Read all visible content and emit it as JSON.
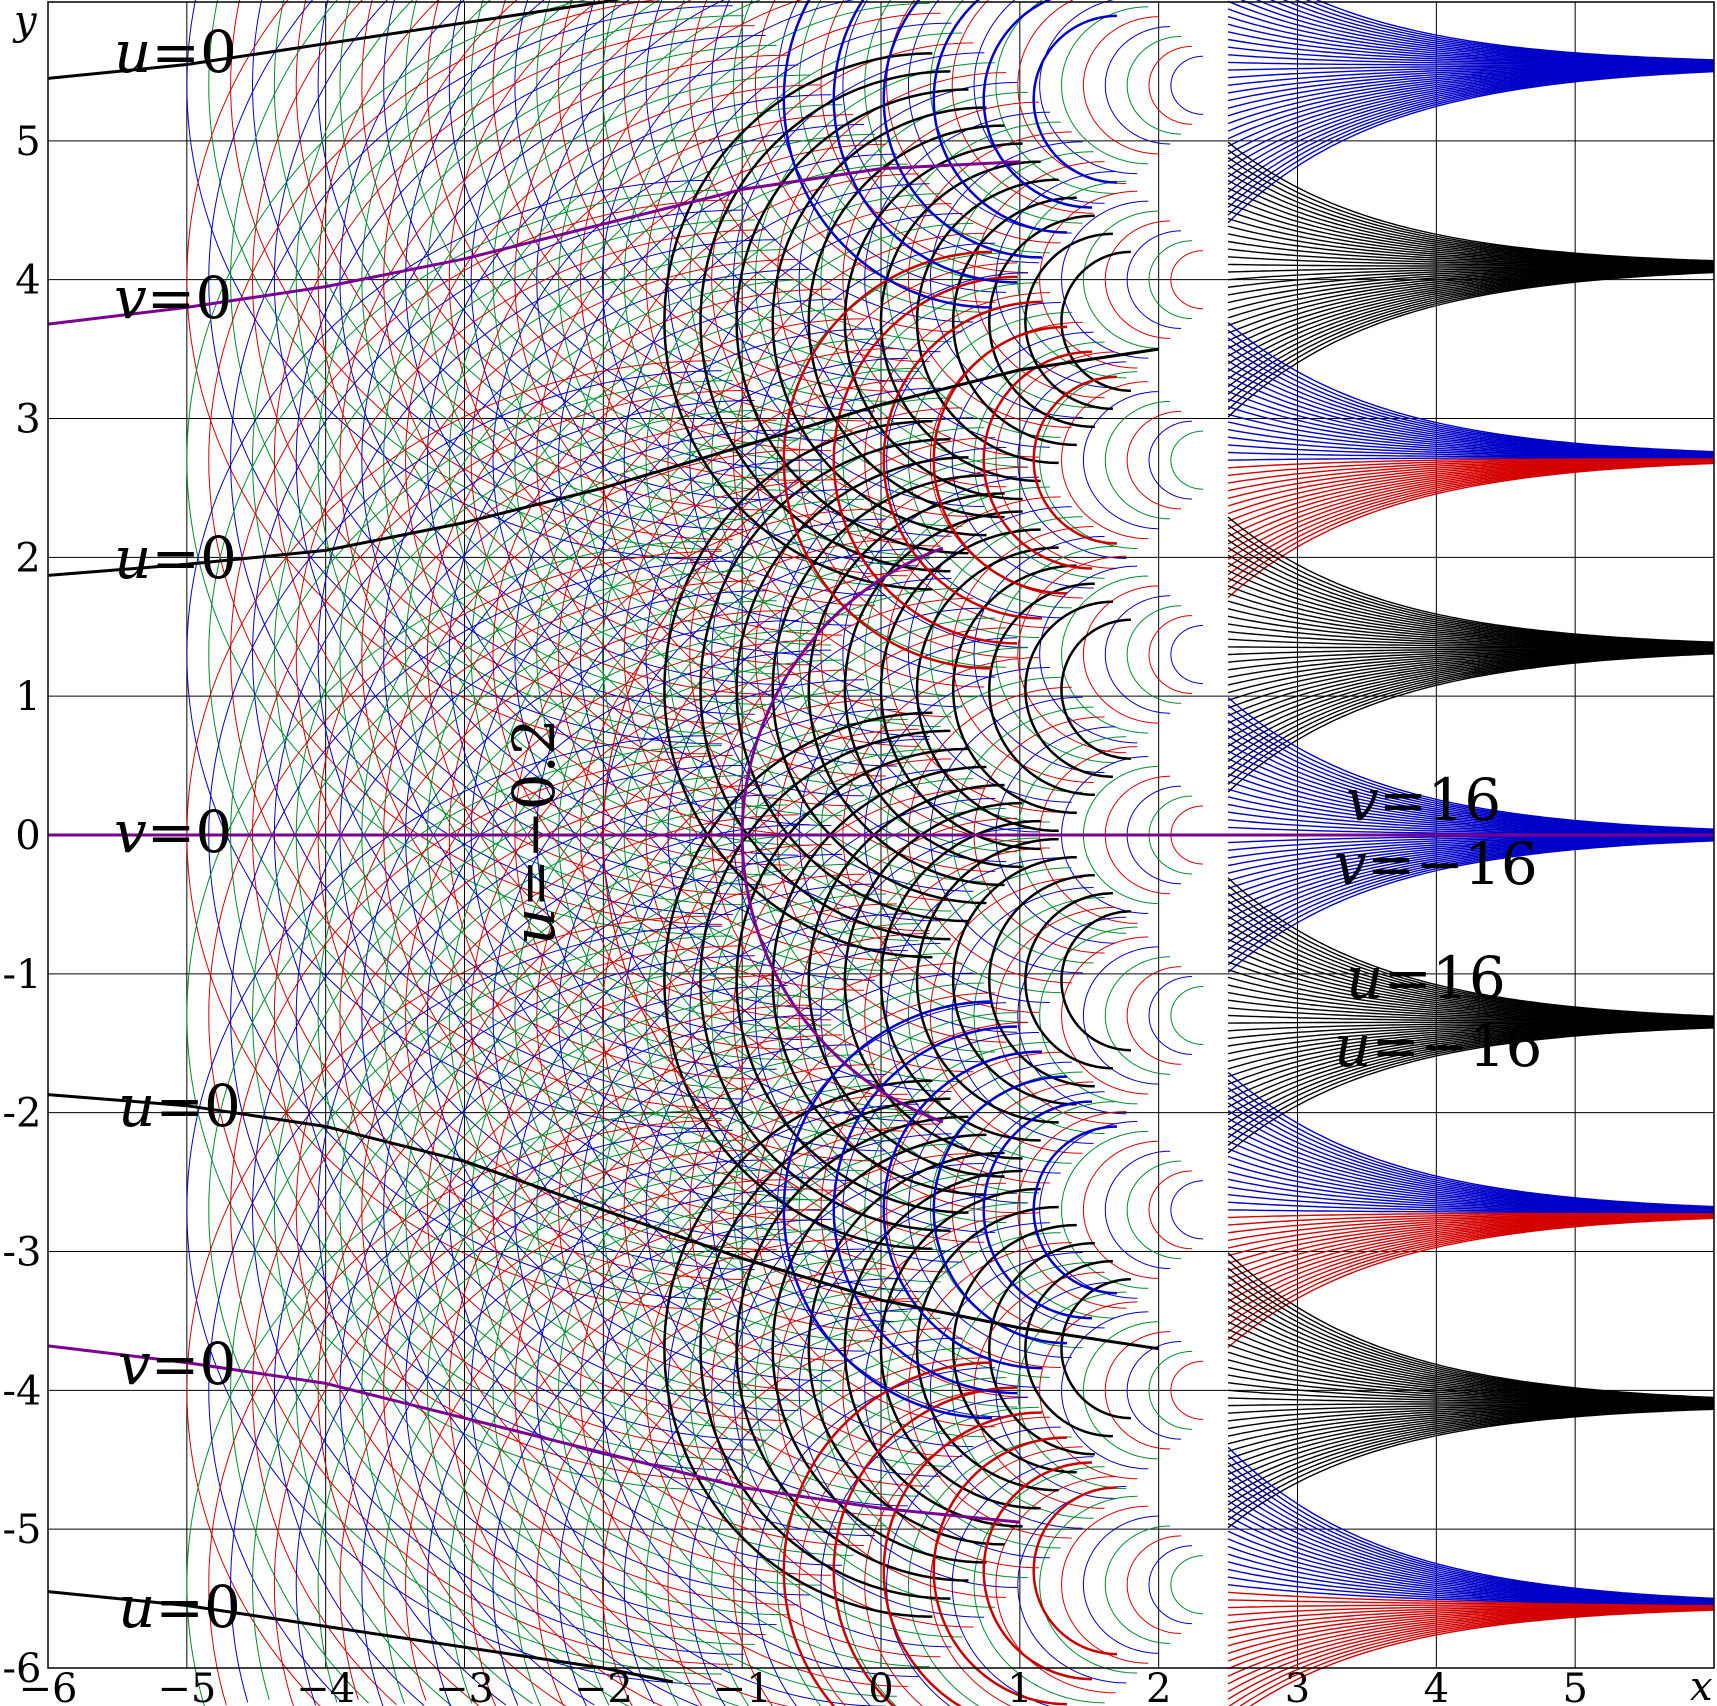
{
  "chart_data": {
    "type": "line",
    "xlabel": "x",
    "ylabel": "y",
    "xlim": [
      -6,
      6
    ],
    "ylim": [
      -6,
      6
    ],
    "grid": true,
    "x_ticks": [
      "−6",
      "−5",
      "−4",
      "−3",
      "−2",
      "−1",
      "0",
      "1",
      "2",
      "3",
      "4",
      "5"
    ],
    "y_ticks": [
      "5",
      "4",
      "3",
      "2",
      "1",
      "0",
      "-1",
      "-2",
      "-3",
      "-4",
      "-5",
      "-6"
    ],
    "colors": {
      "u_level": "#000000",
      "v_level": "#7b0090",
      "fine_blue": "#0000c8",
      "fine_red": "#d40000",
      "fine_green": "#008c2e",
      "thick_black": "#000000",
      "thick_red": "#c80000",
      "thick_blue": "#0000c8"
    },
    "annotations": [
      {
        "key": "u0_a",
        "var": "u",
        "eq": "=",
        "val": "0"
      },
      {
        "key": "v0_a",
        "var": "v",
        "eq": "=",
        "val": "0"
      },
      {
        "key": "u0_b",
        "var": "u",
        "eq": "=",
        "val": "0"
      },
      {
        "key": "v0_b",
        "var": "v",
        "eq": "=",
        "val": "0"
      },
      {
        "key": "u0_c",
        "var": "u",
        "eq": "=",
        "val": "0"
      },
      {
        "key": "v0_c",
        "var": "v",
        "eq": "=",
        "val": "0"
      },
      {
        "key": "u0_d",
        "var": "u",
        "eq": "=",
        "val": "0"
      },
      {
        "key": "um02",
        "var": "u",
        "eq": "=",
        "val": "−0.2"
      },
      {
        "key": "v16",
        "var": "v",
        "eq": "=",
        "val": "16"
      },
      {
        "key": "vm16",
        "var": "v",
        "eq": "=",
        "val": "−16"
      },
      {
        "key": "u16",
        "var": "u",
        "eq": "=",
        "val": "16"
      },
      {
        "key": "um16",
        "var": "u",
        "eq": "=",
        "val": "−16"
      }
    ]
  }
}
